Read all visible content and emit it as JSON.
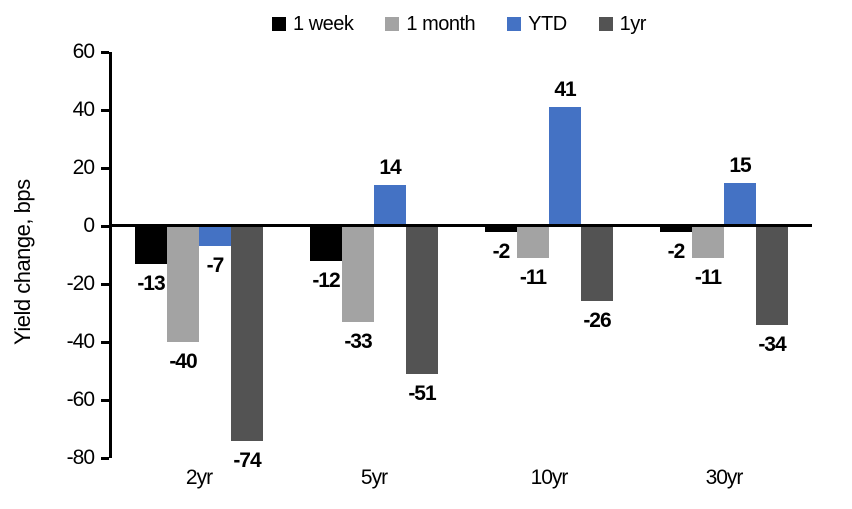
{
  "chart_data": {
    "type": "bar",
    "title": "",
    "xlabel": "",
    "ylabel": "Yield change, bps",
    "categories": [
      "2yr",
      "5yr",
      "10yr",
      "30yr"
    ],
    "series": [
      {
        "name": "1 week",
        "color": "#000000",
        "values": [
          -13,
          -12,
          -2,
          -2
        ]
      },
      {
        "name": "1 month",
        "color": "#a3a3a3",
        "values": [
          -40,
          -33,
          -11,
          -11
        ]
      },
      {
        "name": "YTD",
        "color": "#4472c4",
        "values": [
          -7,
          14,
          41,
          15
        ]
      },
      {
        "name": "1yr",
        "color": "#535353",
        "values": [
          -74,
          -51,
          -26,
          -34
        ]
      }
    ],
    "ylim": [
      -80,
      60
    ],
    "yticks": [
      60,
      40,
      20,
      0,
      -20,
      -40,
      -60,
      -80
    ],
    "grid": false,
    "legend_position": "top",
    "data_labels": "outside-end",
    "axis_color": "#000000",
    "background_color": "#ffffff"
  }
}
